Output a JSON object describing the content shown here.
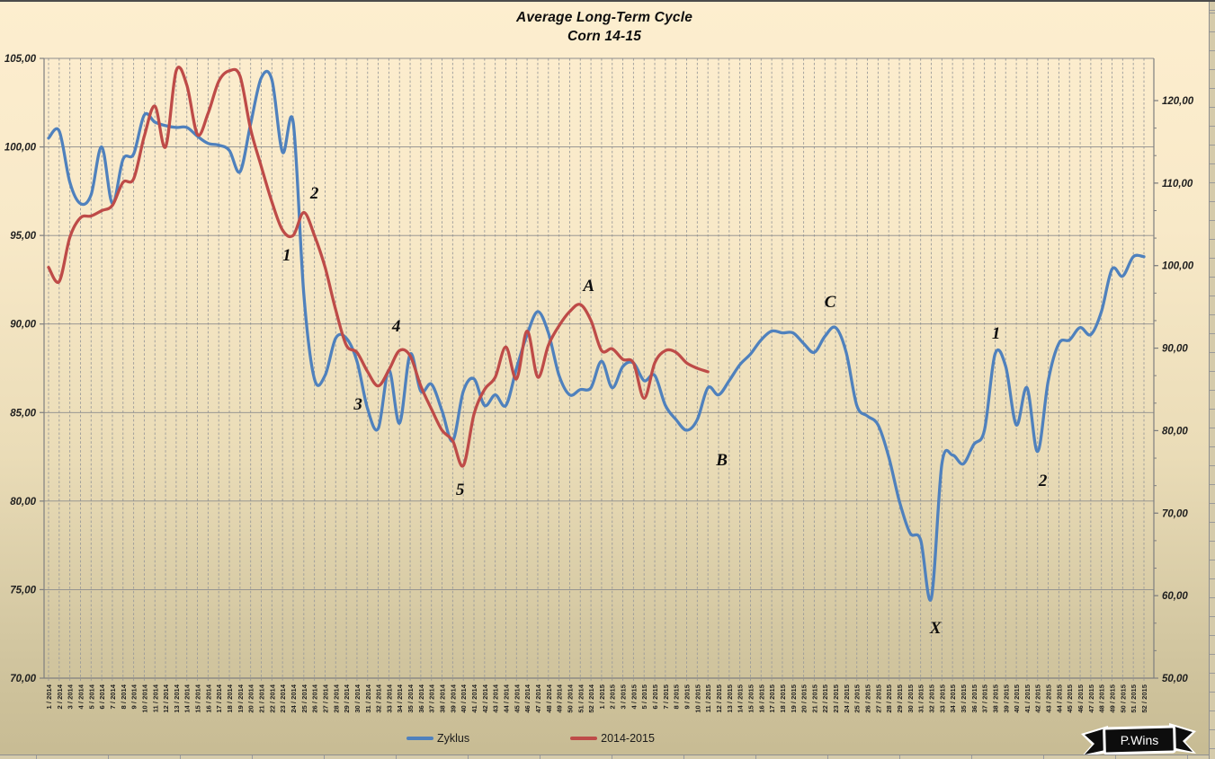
{
  "chart_data": {
    "type": "line",
    "title": "Average Long-Term Cycle",
    "subtitle": "Corn 14-15",
    "legend_position": "bottom",
    "grid": {
      "vertical": "dashed-per-week",
      "horizontal": "solid-per-5-units"
    },
    "colors": {
      "series_blue": "#4f81bd",
      "series_red": "#be4b48",
      "grid_vertical": "#9a9a9a",
      "grid_horizontal": "#8c8c8c",
      "axis": "#7f7f7f",
      "text": "#1f1f1f",
      "background_top": "#fdeecf",
      "background_bottom": "#c7bb93"
    },
    "left_axis": {
      "min": 70,
      "max": 105,
      "labels": [
        "105,00",
        "100,00",
        "95,00",
        "90,00",
        "85,00",
        "80,00",
        "75,00",
        "70,00"
      ],
      "values": [
        105,
        100,
        95,
        90,
        85,
        80,
        75,
        70
      ]
    },
    "right_axis": {
      "min": 50,
      "max": 120,
      "labels": [
        "120,00",
        "110,00",
        "100,00",
        "90,00",
        "80,00",
        "70,00",
        "60,00",
        "50,00"
      ],
      "values": [
        120,
        110,
        100,
        90,
        80,
        70,
        60,
        50
      ]
    },
    "x_labels": [
      "1 / 2014",
      "2 / 2014",
      "3 / 2014",
      "4 / 2014",
      "5 / 2014",
      "6 / 2014",
      "7 / 2014",
      "8 / 2014",
      "9 / 2014",
      "10 / 2014",
      "11 / 2014",
      "12 / 2014",
      "13 / 2014",
      "14 / 2014",
      "15 / 2014",
      "16 / 2014",
      "17 / 2014",
      "18 / 2014",
      "19 / 2014",
      "20 / 2014",
      "21 / 2014",
      "22 / 2014",
      "23 / 2014",
      "24 / 2014",
      "25 / 2014",
      "26 / 2014",
      "27 / 2014",
      "28 / 2014",
      "29 / 2014",
      "30 / 2014",
      "31 / 2014",
      "32 / 2014",
      "33 / 2014",
      "34 / 2014",
      "35 / 2014",
      "36 / 2014",
      "37 / 2014",
      "38 / 2014",
      "39 / 2014",
      "40 / 2014",
      "41 / 2014",
      "42 / 2014",
      "43 / 2014",
      "44 / 2014",
      "45 / 2014",
      "46 / 2014",
      "47 / 2014",
      "48 / 2014",
      "49 / 2014",
      "50 / 2014",
      "51 / 2014",
      "52 / 2014",
      "1 / 2015",
      "2 / 2015",
      "3 / 2015",
      "4 / 2015",
      "5 / 2015",
      "6 / 2015",
      "7 / 2015",
      "8 / 2015",
      "9 / 2015",
      "10 / 2015",
      "11 / 2015",
      "12 / 2015",
      "13 / 2015",
      "14 / 2015",
      "15 / 2015",
      "16 / 2015",
      "17 / 2015",
      "18 / 2015",
      "19 / 2015",
      "20 / 2015",
      "21 / 2015",
      "22 / 2015",
      "23 / 2015",
      "24 / 2015",
      "25 / 2015",
      "26 / 2015",
      "27 / 2015",
      "28 / 2015",
      "29 / 2015",
      "30 / 2015",
      "31 / 2015",
      "32 / 2015",
      "33 / 2015",
      "34 / 2015",
      "35 / 2015",
      "36 / 2015",
      "37 / 2015",
      "38 / 2015",
      "39 / 2015",
      "40 / 2015",
      "41 / 2015",
      "42 / 2015",
      "43 / 2015",
      "44 / 2015",
      "45 / 2015",
      "46 / 2015",
      "47 / 2015",
      "48 / 2015",
      "49 / 2015",
      "50 / 2015",
      "51 / 2015",
      "52 / 2015"
    ],
    "series": [
      {
        "name": "Zyklus",
        "color": "#4f81bd",
        "values": [
          100.5,
          100.9,
          98.0,
          96.8,
          97.3,
          100.0,
          96.8,
          99.3,
          99.6,
          101.8,
          101.4,
          101.2,
          101.1,
          101.1,
          100.6,
          100.2,
          100.1,
          99.8,
          98.6,
          101.3,
          103.9,
          103.8,
          99.7,
          101.4,
          91.7,
          86.9,
          87.1,
          89.2,
          89.2,
          87.9,
          85.2,
          84.1,
          87.4,
          84.4,
          88.3,
          86.2,
          86.6,
          85.1,
          83.4,
          86.2,
          86.9,
          85.4,
          86.0,
          85.4,
          87.5,
          89.4,
          90.7,
          89.5,
          87.1,
          86.0,
          86.3,
          86.4,
          87.9,
          86.4,
          87.6,
          87.8,
          86.8,
          87.1,
          85.4,
          84.6,
          84.0,
          84.6,
          86.4,
          86.0,
          86.8,
          87.7,
          88.3,
          89.1,
          89.6,
          89.5,
          89.5,
          88.9,
          88.4,
          89.3,
          89.8,
          88.4,
          85.4,
          84.8,
          84.3,
          82.5,
          80.0,
          78.2,
          77.8,
          74.5,
          82.1,
          82.6,
          82.1,
          83.2,
          84.0,
          88.3,
          87.6,
          84.3,
          86.4,
          82.8,
          86.8,
          88.9,
          89.1,
          89.8,
          89.4,
          90.7,
          93.1,
          92.7,
          93.8,
          93.8
        ]
      },
      {
        "name": "2014-2015",
        "color": "#be4b48",
        "values": [
          93.2,
          92.4,
          94.9,
          96.0,
          96.1,
          96.4,
          96.7,
          98.0,
          98.2,
          100.6,
          102.3,
          100.0,
          104.3,
          103.5,
          100.7,
          101.9,
          103.7,
          104.3,
          104.0,
          101.0,
          98.9,
          96.9,
          95.3,
          95.0,
          96.3,
          95.0,
          93.2,
          90.8,
          88.8,
          88.4,
          87.3,
          86.5,
          87.4,
          88.5,
          88.2,
          86.5,
          85.2,
          84.0,
          83.4,
          82.0,
          84.9,
          86.3,
          87.0,
          88.7,
          86.9,
          89.6,
          87.0,
          88.8,
          89.9,
          90.7,
          91.1,
          90.2,
          88.5,
          88.6,
          88.0,
          87.8,
          85.8,
          87.8,
          88.5,
          88.4,
          87.8,
          87.5,
          87.3
        ]
      }
    ],
    "annotations": [
      {
        "text": "1",
        "week": 22.4,
        "value": 93.8
      },
      {
        "text": "2",
        "week": 25.0,
        "value": 97.3
      },
      {
        "text": "3",
        "week": 29.1,
        "value": 85.35
      },
      {
        "text": "4",
        "week": 32.7,
        "value": 89.8
      },
      {
        "text": "5",
        "week": 38.7,
        "value": 80.55
      },
      {
        "text": "A",
        "week": 50.8,
        "value": 92.05
      },
      {
        "text": "B",
        "week": 63.3,
        "value": 82.2
      },
      {
        "text": "C",
        "week": 73.5,
        "value": 91.15
      },
      {
        "text": "1",
        "week": 89.1,
        "value": 89.4
      },
      {
        "text": "2",
        "week": 93.5,
        "value": 81.05
      },
      {
        "text": "X",
        "week": 83.4,
        "value": 72.75
      }
    ]
  },
  "logo": {
    "text": "P.Wins"
  }
}
